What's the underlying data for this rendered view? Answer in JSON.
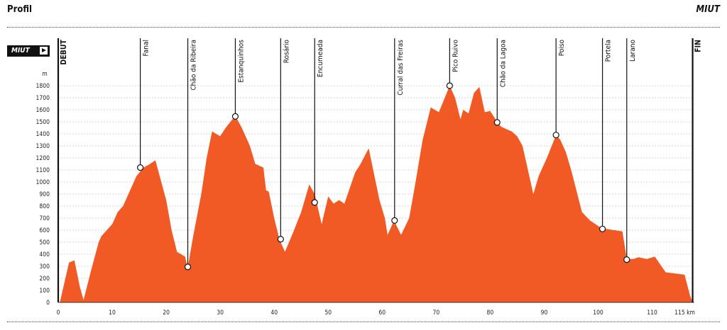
{
  "header": {
    "title": "Profil",
    "brand": "MIUT"
  },
  "badge": {
    "label": "MIUT"
  },
  "colors": {
    "area": "#f15a24",
    "line": "#222222",
    "grid": "#c8c8c8"
  },
  "chart_data": {
    "type": "area",
    "title": "Profil",
    "ylabel": "m",
    "xlabel": "km",
    "xlim": [
      0,
      117
    ],
    "ylim": [
      0,
      1800
    ],
    "yticks": [
      0,
      100,
      200,
      300,
      400,
      500,
      600,
      700,
      800,
      900,
      1000,
      1100,
      1200,
      1300,
      1400,
      1500,
      1600,
      1700,
      1800
    ],
    "xticks": [
      0,
      10,
      20,
      30,
      40,
      50,
      60,
      70,
      80,
      90,
      100,
      110,
      115
    ],
    "xtick_labels": [
      "0",
      "10",
      "20",
      "30",
      "40",
      "50",
      "60",
      "70",
      "80",
      "90",
      "100",
      "110",
      "115 km"
    ],
    "grid": true,
    "profile": [
      [
        0.3,
        0
      ],
      [
        2,
        330
      ],
      [
        3,
        350
      ],
      [
        4,
        130
      ],
      [
        4.7,
        20
      ],
      [
        6,
        250
      ],
      [
        7.5,
        500
      ],
      [
        8,
        550
      ],
      [
        10,
        650
      ],
      [
        11,
        750
      ],
      [
        12,
        800
      ],
      [
        12.5,
        850
      ],
      [
        13.5,
        950
      ],
      [
        14.5,
        1050
      ],
      [
        15.8,
        1120
      ],
      [
        17,
        1150
      ],
      [
        18,
        1180
      ],
      [
        20,
        850
      ],
      [
        21,
        600
      ],
      [
        22,
        420
      ],
      [
        23.5,
        380
      ],
      [
        24,
        290
      ],
      [
        25,
        550
      ],
      [
        26.5,
        900
      ],
      [
        27.5,
        1200
      ],
      [
        28.5,
        1420
      ],
      [
        30,
        1380
      ],
      [
        31,
        1450
      ],
      [
        32.8,
        1550
      ],
      [
        34,
        1450
      ],
      [
        35.5,
        1300
      ],
      [
        36.5,
        1150
      ],
      [
        38,
        1120
      ],
      [
        38.5,
        930
      ],
      [
        39,
        920
      ],
      [
        40,
        700
      ],
      [
        41,
        520
      ],
      [
        42,
        420
      ],
      [
        43.5,
        580
      ],
      [
        45,
        750
      ],
      [
        46.5,
        980
      ],
      [
        47.5,
        900
      ],
      [
        48.8,
        650
      ],
      [
        50,
        880
      ],
      [
        51,
        820
      ],
      [
        52,
        850
      ],
      [
        53,
        820
      ],
      [
        55,
        1080
      ],
      [
        56,
        1150
      ],
      [
        57.5,
        1280
      ],
      [
        59.5,
        850
      ],
      [
        60.5,
        700
      ],
      [
        61,
        560
      ],
      [
        62.2,
        680
      ],
      [
        63.5,
        560
      ],
      [
        65,
        700
      ],
      [
        66,
        950
      ],
      [
        67.5,
        1350
      ],
      [
        69,
        1620
      ],
      [
        70.5,
        1580
      ],
      [
        72.5,
        1800
      ],
      [
        73.5,
        1700
      ],
      [
        74.5,
        1520
      ],
      [
        75,
        1600
      ],
      [
        76,
        1570
      ],
      [
        77,
        1740
      ],
      [
        78,
        1790
      ],
      [
        79,
        1580
      ],
      [
        80,
        1590
      ],
      [
        81.3,
        1500
      ],
      [
        82,
        1460
      ],
      [
        83,
        1440
      ],
      [
        84,
        1420
      ],
      [
        85,
        1380
      ],
      [
        86,
        1300
      ],
      [
        88,
        900
      ],
      [
        89,
        1050
      ],
      [
        90,
        1150
      ],
      [
        90.5,
        1200
      ],
      [
        92.2,
        1390
      ],
      [
        93,
        1350
      ],
      [
        94,
        1250
      ],
      [
        95,
        1100
      ],
      [
        97,
        750
      ],
      [
        98.5,
        680
      ],
      [
        100.5,
        620
      ],
      [
        101.5,
        610
      ],
      [
        104.5,
        590
      ],
      [
        105.3,
        360
      ],
      [
        106.5,
        360
      ],
      [
        107.5,
        375
      ],
      [
        109,
        360
      ],
      [
        110.5,
        380
      ],
      [
        112.5,
        250
      ],
      [
        116,
        230
      ],
      [
        117,
        60
      ],
      [
        117.5,
        0
      ]
    ],
    "checkpoints": [
      {
        "name": "DEBUT",
        "km": 0,
        "alt": null,
        "style": "bold"
      },
      {
        "name": "Fanal",
        "km": 15.2,
        "alt": 1120
      },
      {
        "name": "Chão da Ribeira",
        "km": 24,
        "alt": 295
      },
      {
        "name": "Estanquinhos",
        "km": 32.8,
        "alt": 1545
      },
      {
        "name": "Rosário",
        "km": 41.2,
        "alt": 525
      },
      {
        "name": "Encumeada",
        "km": 47.5,
        "alt": 830
      },
      {
        "name": "Curral das Freiras",
        "km": 62.3,
        "alt": 680
      },
      {
        "name": "Pico Ruivo",
        "km": 72.5,
        "alt": 1800
      },
      {
        "name": "Chão da Lagoa",
        "km": 81.3,
        "alt": 1495
      },
      {
        "name": "Poiso",
        "km": 92.2,
        "alt": 1390
      },
      {
        "name": "Portela",
        "km": 100.8,
        "alt": 610
      },
      {
        "name": "Larano",
        "km": 105.3,
        "alt": 355
      },
      {
        "name": "FIN",
        "km": 117.5,
        "alt": null,
        "style": "bold"
      }
    ]
  }
}
